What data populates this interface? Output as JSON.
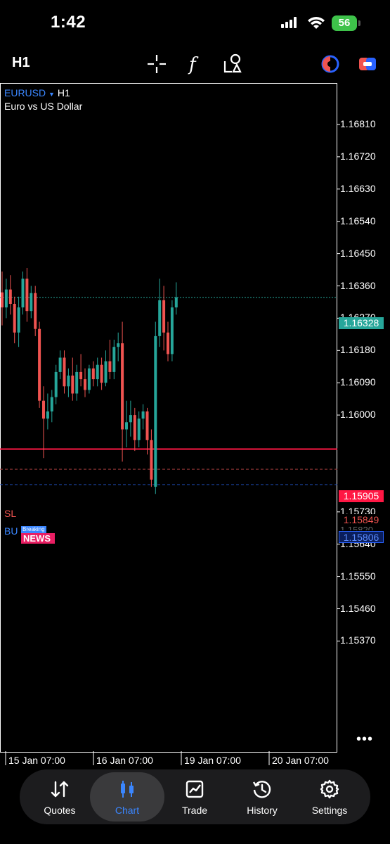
{
  "status_bar": {
    "time": "1:42",
    "battery": "56"
  },
  "toolbar": {
    "timeframe": "H1",
    "icons": [
      "crosshair-icon",
      "indicators-icon",
      "objects-icon",
      "trade-timer-icon",
      "link-icon"
    ]
  },
  "chart": {
    "symbol": "EURUSD",
    "symbol_arrow": "▼",
    "timeframe": "H1",
    "description": "Euro vs US Dollar",
    "price_ticks": [
      "1.16810",
      "1.16720",
      "1.16630",
      "1.16540",
      "1.16450",
      "1.16360",
      "1.16270",
      "1.16180",
      "1.16090",
      "1.16000",
      "1.15730",
      "1.15640",
      "1.15550",
      "1.15460",
      "1.15370"
    ],
    "time_ticks": [
      "15 Jan 07:00",
      "16 Jan 07:00",
      "19 Jan 07:00",
      "20 Jan 07:00"
    ],
    "current_price": "1.16328",
    "red_line_price": "1.15905",
    "sl_label": "SL",
    "sl_price": "1.15849",
    "buy_label": "BU",
    "buy_price": "1.15806",
    "hidden_price": "1.15820",
    "news_badge": {
      "top": "Breaking",
      "bottom": "NEWS"
    },
    "colors": {
      "bull": "#26a69a",
      "bear": "#ef5350",
      "red_line": "#ff1744",
      "buy_line": "#2962ff",
      "current_tag": "#26a69a"
    }
  },
  "chart_data": {
    "type": "candlestick",
    "ylim": [
      1.153,
      1.169
    ],
    "candles": [
      [
        1.16342,
        1.164,
        1.1625,
        1.163
      ],
      [
        1.163,
        1.1638,
        1.1627,
        1.1635
      ],
      [
        1.1635,
        1.1639,
        1.1628,
        1.1631
      ],
      [
        1.1631,
        1.1633,
        1.162,
        1.1623
      ],
      [
        1.1623,
        1.1633,
        1.1619,
        1.163
      ],
      [
        1.163,
        1.164,
        1.1628,
        1.1638
      ],
      [
        1.1638,
        1.1641,
        1.1626,
        1.1629
      ],
      [
        1.1629,
        1.1636,
        1.1627,
        1.1634
      ],
      [
        1.1634,
        1.1636,
        1.1622,
        1.1624
      ],
      [
        1.1624,
        1.1626,
        1.1602,
        1.1604
      ],
      [
        1.1604,
        1.1608,
        1.1588,
        1.1599
      ],
      [
        1.1599,
        1.1606,
        1.1596,
        1.1601
      ],
      [
        1.1601,
        1.1607,
        1.1598,
        1.1605
      ],
      [
        1.1605,
        1.1614,
        1.1603,
        1.1612
      ],
      [
        1.1612,
        1.1618,
        1.161,
        1.1616
      ],
      [
        1.1616,
        1.1618,
        1.1606,
        1.1608
      ],
      [
        1.1608,
        1.1613,
        1.1605,
        1.1611
      ],
      [
        1.1611,
        1.1616,
        1.1604,
        1.1606
      ],
      [
        1.1606,
        1.1614,
        1.1604,
        1.1612
      ],
      [
        1.1612,
        1.1617,
        1.1608,
        1.161
      ],
      [
        1.161,
        1.1613,
        1.1605,
        1.1607
      ],
      [
        1.1607,
        1.1614,
        1.1606,
        1.1613
      ],
      [
        1.1613,
        1.1615,
        1.1608,
        1.161
      ],
      [
        1.161,
        1.1616,
        1.1608,
        1.1614
      ],
      [
        1.1614,
        1.1616,
        1.1607,
        1.1609
      ],
      [
        1.1609,
        1.1618,
        1.1608,
        1.1615
      ],
      [
        1.1615,
        1.1621,
        1.161,
        1.1612
      ],
      [
        1.1612,
        1.1621,
        1.161,
        1.1619
      ],
      [
        1.1619,
        1.1623,
        1.1615,
        1.162
      ],
      [
        1.162,
        1.1626,
        1.1587,
        1.1596
      ],
      [
        1.1596,
        1.1604,
        1.1591,
        1.1598
      ],
      [
        1.1598,
        1.1604,
        1.1594,
        1.16
      ],
      [
        1.16,
        1.1602,
        1.159,
        1.1593
      ],
      [
        1.1593,
        1.1601,
        1.1591,
        1.1599
      ],
      [
        1.1599,
        1.1603,
        1.1596,
        1.1601
      ],
      [
        1.1601,
        1.1602,
        1.1589,
        1.1593
      ],
      [
        1.1593,
        1.1596,
        1.158,
        1.1582
      ],
      [
        1.158,
        1.1626,
        1.1578,
        1.1622
      ],
      [
        1.1622,
        1.1638,
        1.1619,
        1.1632
      ],
      [
        1.1632,
        1.1636,
        1.1618,
        1.1623
      ],
      [
        1.1623,
        1.1626,
        1.1615,
        1.1617
      ],
      [
        1.1617,
        1.1632,
        1.1615,
        1.163
      ],
      [
        1.163,
        1.1637,
        1.1628,
        1.16328
      ]
    ]
  },
  "nav": {
    "items": [
      {
        "label": "Quotes",
        "icon": "sort-arrows-icon",
        "active": false
      },
      {
        "label": "Chart",
        "icon": "candles-icon",
        "active": true
      },
      {
        "label": "Trade",
        "icon": "trade-chart-icon",
        "active": false
      },
      {
        "label": "History",
        "icon": "history-icon",
        "active": false
      },
      {
        "label": "Settings",
        "icon": "gear-icon",
        "active": false
      }
    ]
  }
}
